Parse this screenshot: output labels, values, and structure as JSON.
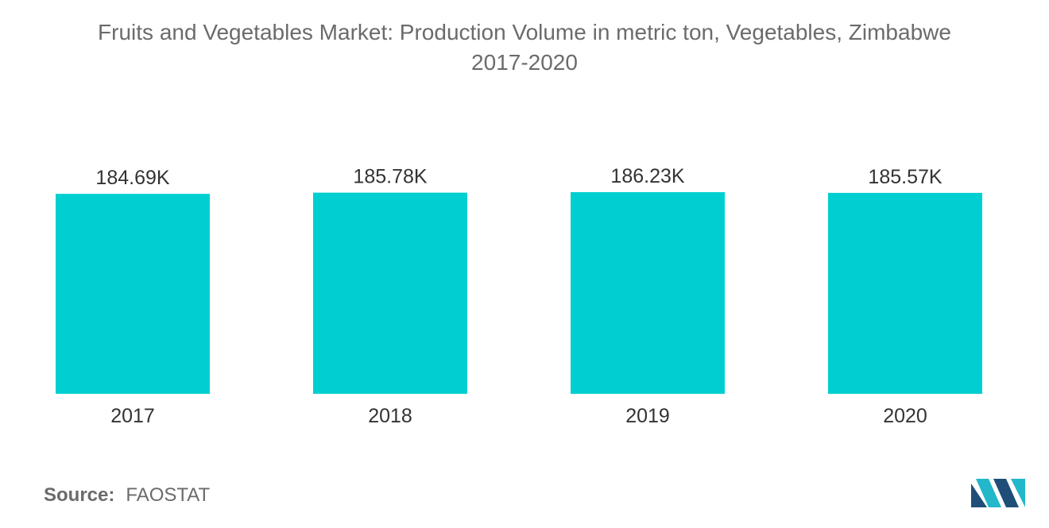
{
  "chart_data": {
    "type": "bar",
    "title": "Fruits and Vegetables Market: Production Volume in metric ton, Vegetables, Zimbabwe",
    "subtitle": "2017-2020",
    "categories": [
      "2017",
      "2018",
      "2019",
      "2020"
    ],
    "values": [
      184.69,
      185.78,
      186.23,
      185.57
    ],
    "data_labels": [
      "184.69K",
      "185.78K",
      "186.23K",
      "185.57K"
    ],
    "xlabel": "",
    "ylabel": "",
    "grid": false,
    "legend": "none",
    "bar_color": "#00cfd1"
  },
  "source": {
    "label": "Source:",
    "value": "FAOSTAT"
  },
  "colors": {
    "title_text": "#6b6b6b",
    "label_text": "#333333",
    "logo_dark": "#1f4e79",
    "logo_light": "#22b8c9"
  }
}
